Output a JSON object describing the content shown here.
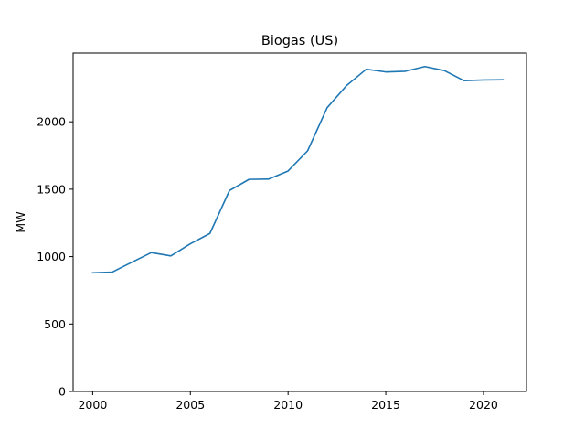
{
  "chart_data": {
    "type": "line",
    "title": "Biogas (US)",
    "xlabel": "",
    "ylabel": "MW",
    "xlim": [
      1999,
      2022.2
    ],
    "ylim": [
      0,
      2510
    ],
    "xticks": [
      2000,
      2005,
      2010,
      2015,
      2020
    ],
    "yticks": [
      0,
      500,
      1000,
      1500,
      2000
    ],
    "grid": false,
    "legend": "none",
    "series": [
      {
        "color": "#1f77b4",
        "x": [
          2000,
          2001,
          2002,
          2003,
          2004,
          2005,
          2006,
          2007,
          2008,
          2009,
          2010,
          2011,
          2012,
          2013,
          2014,
          2015,
          2016,
          2017,
          2018,
          2019,
          2020,
          2021
        ],
        "y": [
          880,
          885,
          958,
          1030,
          1005,
          1095,
          1172,
          1490,
          1573,
          1575,
          1635,
          1785,
          2105,
          2270,
          2390,
          2370,
          2375,
          2410,
          2380,
          2305,
          2310,
          2312
        ]
      }
    ]
  }
}
